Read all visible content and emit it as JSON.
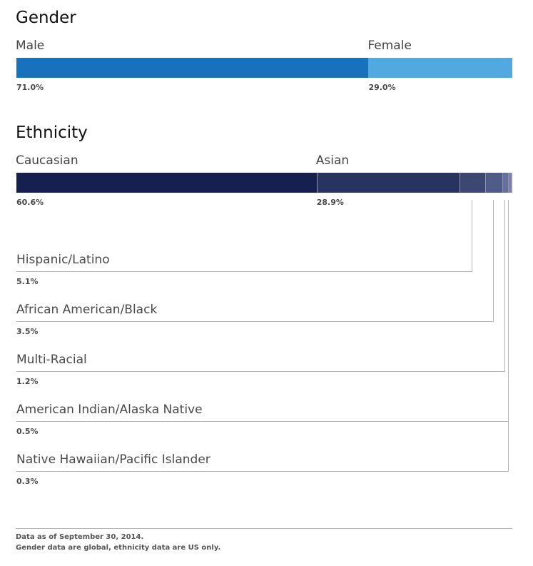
{
  "chart_data": [
    {
      "type": "bar",
      "stacked": true,
      "orientation": "horizontal",
      "title": "Gender",
      "categories": [
        "Male",
        "Female"
      ],
      "values": [
        71.0,
        29.0
      ],
      "value_labels": [
        "71.0%",
        "29.0%"
      ],
      "colors": [
        "#1771bb",
        "#52a9df"
      ]
    },
    {
      "type": "bar",
      "stacked": true,
      "orientation": "horizontal",
      "title": "Ethnicity",
      "categories": [
        "Caucasian",
        "Asian",
        "Hispanic/Latino",
        "African American/Black",
        "Multi-Racial",
        "American Indian/Alaska Native",
        "Native Hawaiian/Pacific Islander"
      ],
      "values": [
        60.6,
        28.9,
        5.1,
        3.5,
        1.2,
        0.5,
        0.3
      ],
      "value_labels": [
        "60.6%",
        "28.9%",
        "5.1%",
        "3.5%",
        "1.2%",
        "0.5%",
        "0.3%"
      ],
      "colors": [
        "#15204e",
        "#283360",
        "#3c4772",
        "#505c88",
        "#65719b",
        "#7884ad",
        "#8d98bf"
      ]
    }
  ],
  "footnote": {
    "line1": "Data as of September 30, 2014.",
    "line2": "Gender data are global, ethnicity data are US only."
  }
}
